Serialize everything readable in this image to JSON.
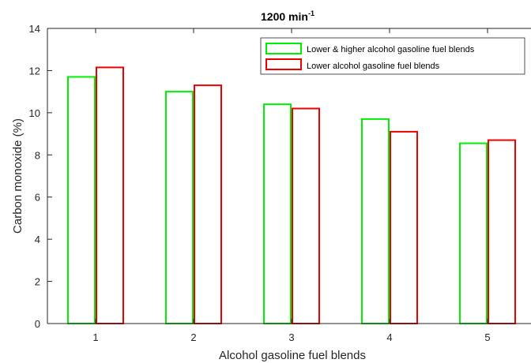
{
  "chart_data": {
    "type": "bar",
    "title": "1200 min",
    "title_superscript": "-1",
    "xlabel": "Alcohol gasoline fuel blends",
    "ylabel": "Carbon monoxide (%)",
    "categories": [
      "1",
      "2",
      "3",
      "4",
      "5"
    ],
    "ylim": [
      0,
      14
    ],
    "yticks": [
      "0",
      "2",
      "4",
      "6",
      "8",
      "10",
      "12",
      "14"
    ],
    "grid": false,
    "legend_position": "top-right",
    "series": [
      {
        "name": "Lower & higher alcohol gasoline fuel blends",
        "color": "#00ee00",
        "values": [
          11.7,
          11.0,
          10.4,
          9.7,
          8.55
        ]
      },
      {
        "name": "Lower alcohol gasoline fuel blends",
        "color": "#ee0000",
        "values": [
          12.15,
          11.3,
          10.2,
          9.1,
          8.7
        ]
      }
    ]
  }
}
